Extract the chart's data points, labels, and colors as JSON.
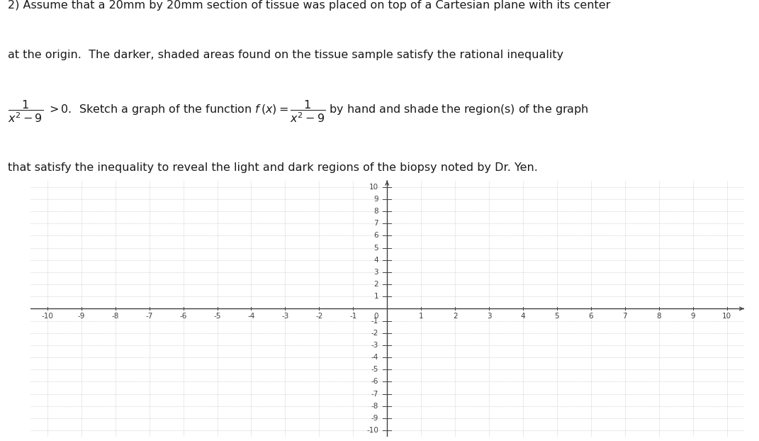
{
  "xmin": -10,
  "xmax": 10,
  "ymin": -10,
  "ymax": 10,
  "xticks": [
    -10,
    -9,
    -8,
    -7,
    -6,
    -5,
    -4,
    -3,
    -2,
    -1,
    1,
    2,
    3,
    4,
    5,
    6,
    7,
    8,
    9,
    10
  ],
  "yticks": [
    -10,
    -9,
    -8,
    -7,
    -6,
    -5,
    -4,
    -3,
    -2,
    -1,
    1,
    2,
    3,
    4,
    5,
    6,
    7,
    8,
    9,
    10
  ],
  "grid_color": "#b8b8b8",
  "axis_color": "#404040",
  "tick_label_fontsize": 7.5,
  "background_color": "#ffffff",
  "text_color": "#1a1a1a",
  "text_fontsize": 11.5,
  "line1": "2) Assume that a 20mm by 20mm section of tissue was placed on top of a Cartesian plane with its center",
  "line2": "at the origin.  The darker, shaded areas found on the tissue sample satisfy the rational inequality",
  "line4": "that satisfy the inequality to reveal the light and dark regions of the biopsy noted by Dr. Yen."
}
